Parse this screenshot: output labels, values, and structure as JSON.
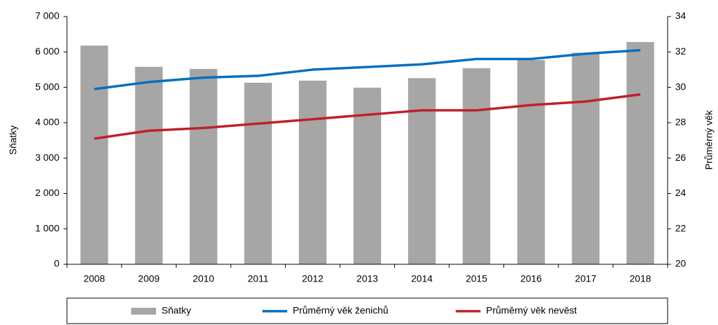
{
  "chart_data": {
    "type": "bar",
    "categories": [
      "2008",
      "2009",
      "2010",
      "2011",
      "2012",
      "2013",
      "2014",
      "2015",
      "2016",
      "2017",
      "2018"
    ],
    "series": [
      {
        "name": "Sňatky",
        "type": "bar",
        "color": "#a6a6a6",
        "values": [
          6180,
          5580,
          5520,
          5130,
          5190,
          4990,
          5260,
          5540,
          5770,
          5980,
          6280
        ]
      },
      {
        "name": "Průměrný věk ženichů",
        "type": "line",
        "axis": "y2",
        "color": "#0070c0",
        "values": [
          29.9,
          30.3,
          30.55,
          30.65,
          31.0,
          31.15,
          31.3,
          31.6,
          31.6,
          31.9,
          32.1
        ]
      },
      {
        "name": "Průměrný věk nevěst",
        "type": "line",
        "axis": "y2",
        "color": "#c0202a",
        "values": [
          27.1,
          27.55,
          27.7,
          27.95,
          28.2,
          28.45,
          28.7,
          28.7,
          29.0,
          29.2,
          29.6
        ]
      }
    ],
    "ylabel": "Sňatky",
    "y2label": "Průměrný věk",
    "ylim": [
      0,
      7000
    ],
    "yticks": [
      0,
      {
        "value": 1000,
        "label": "1 000"
      },
      {
        "value": 2000,
        "label": "2 000"
      },
      {
        "value": 3000,
        "label": "3 000"
      },
      {
        "value": 4000,
        "label": "4 000"
      },
      {
        "value": 5000,
        "label": "5 000"
      },
      {
        "value": 6000,
        "label": "6 000"
      },
      {
        "value": 7000,
        "label": "7 000"
      }
    ],
    "y2lim": [
      20,
      34
    ],
    "y2ticks": [
      20,
      22,
      24,
      26,
      28,
      30,
      32,
      34
    ],
    "legend": "bottom"
  }
}
